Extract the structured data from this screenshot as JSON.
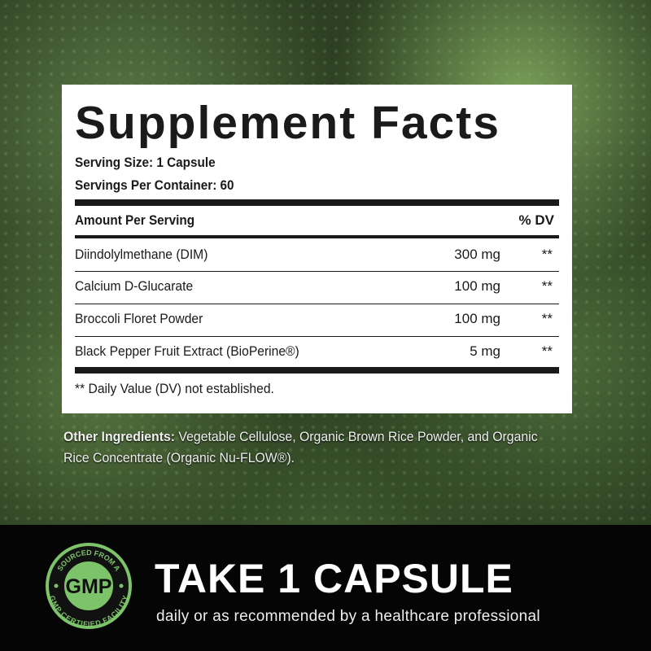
{
  "facts": {
    "title": "Supplement Facts",
    "serving_size": "Serving Size: 1 Capsule",
    "servings_per_container": "Servings Per Container: 60",
    "amount_header": "Amount Per Serving",
    "dv_header": "% DV",
    "rows": [
      {
        "name": "Diindolylmethane (DIM)",
        "amount": "300 mg",
        "dv": "**"
      },
      {
        "name": "Calcium D-Glucarate",
        "amount": "100 mg",
        "dv": "**"
      },
      {
        "name": "Broccoli Floret Powder",
        "amount": "100 mg",
        "dv": "**"
      },
      {
        "name": "Black Pepper Fruit Extract (BioPerine®)",
        "amount": "5 mg",
        "dv": "**"
      }
    ],
    "footnote": "** Daily Value (DV) not established."
  },
  "other": {
    "label": "Other Ingredients:",
    "text": " Vegetable Cellulose, Organic Brown Rice Powder, and Organic Rice Concentrate (Organic Nu-FLOW®)."
  },
  "badge": {
    "top": "SOURCED FROM A",
    "center": "GMP",
    "bottom": "GMP CERTIFIED FACILITY",
    "color": "#7cc36a"
  },
  "cta": {
    "title": "TAKE 1 CAPSULE",
    "subtitle": "daily or as recommended by a healthcare professional"
  }
}
